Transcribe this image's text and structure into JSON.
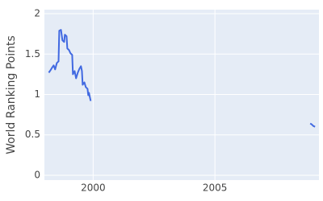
{
  "chart_data": {
    "type": "line",
    "y_label": "World Ranking Points",
    "x": [
      1998.18,
      1998.25,
      1998.31,
      1998.38,
      1998.44,
      1998.51,
      1998.58,
      1998.61,
      1998.68,
      1998.74,
      1998.81,
      1998.84,
      1998.91,
      1998.94,
      1999.01,
      1999.07,
      1999.14,
      1999.17,
      1999.24,
      1999.3,
      1999.37,
      1999.44,
      1999.5,
      1999.54,
      1999.57,
      1999.64,
      1999.7,
      1999.77,
      1999.8,
      1999.83,
      1999.87,
      1999.9,
      2004.0,
      2008.91,
      2008.97,
      2009.04,
      2009.11
    ],
    "series": [
      {
        "color": "#4169e1",
        "values": [
          1.27,
          1.3,
          1.33,
          1.36,
          1.31,
          1.39,
          1.41,
          1.79,
          1.8,
          1.67,
          1.65,
          1.74,
          1.72,
          1.57,
          1.55,
          1.51,
          1.49,
          1.25,
          1.29,
          1.2,
          1.27,
          1.32,
          1.35,
          1.29,
          1.12,
          1.15,
          1.09,
          1.07,
          0.99,
          1.02,
          0.96,
          0.92,
          null,
          0.64,
          0.63,
          0.61,
          0.6
        ]
      }
    ],
    "xlim": [
      1998.0,
      2009.27
    ],
    "xticks": [
      2000,
      2005
    ],
    "ylim": [
      -0.06,
      2.05
    ],
    "yticks": [
      0,
      0.5,
      1,
      1.5,
      2
    ],
    "grid": true
  }
}
